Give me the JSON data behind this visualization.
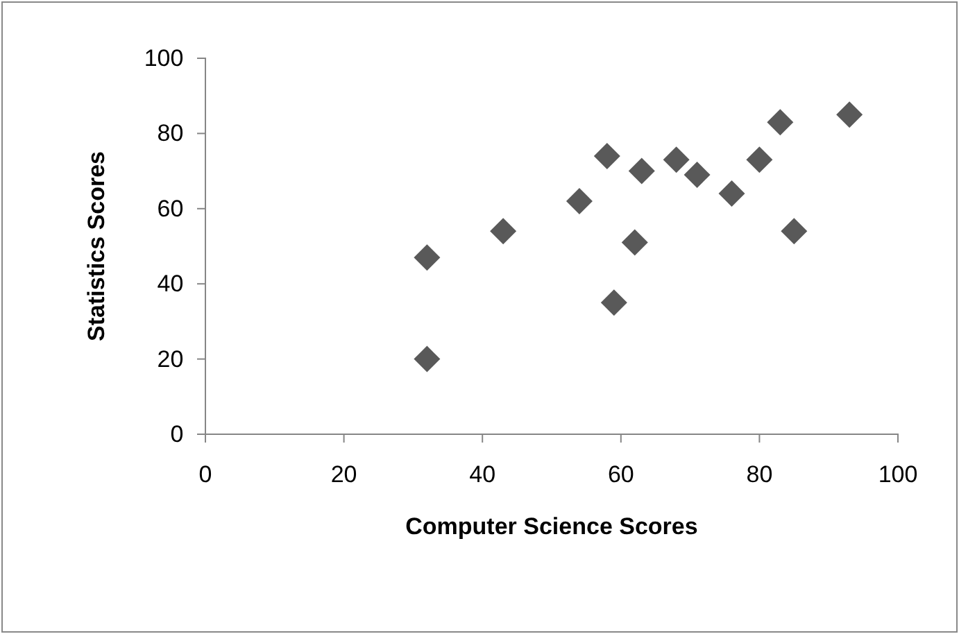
{
  "chart_data": {
    "type": "scatter",
    "xlabel": "Computer Science Scores",
    "ylabel": "Statistics Scores",
    "x": [
      32,
      32,
      43,
      54,
      58,
      59,
      63,
      62,
      68,
      71,
      76,
      80,
      83,
      85,
      93
    ],
    "values": [
      47,
      20,
      54,
      62,
      74,
      35,
      70,
      51,
      73,
      69,
      64,
      73,
      83,
      54,
      85
    ],
    "color": "#595959",
    "marker": "diamond",
    "xlim": [
      0,
      100
    ],
    "xticks": [
      0,
      20,
      40,
      60,
      80,
      100
    ],
    "ylim": [
      0,
      100
    ],
    "yticks": [
      0,
      20,
      40,
      60,
      80,
      100
    ],
    "grid": false
  }
}
